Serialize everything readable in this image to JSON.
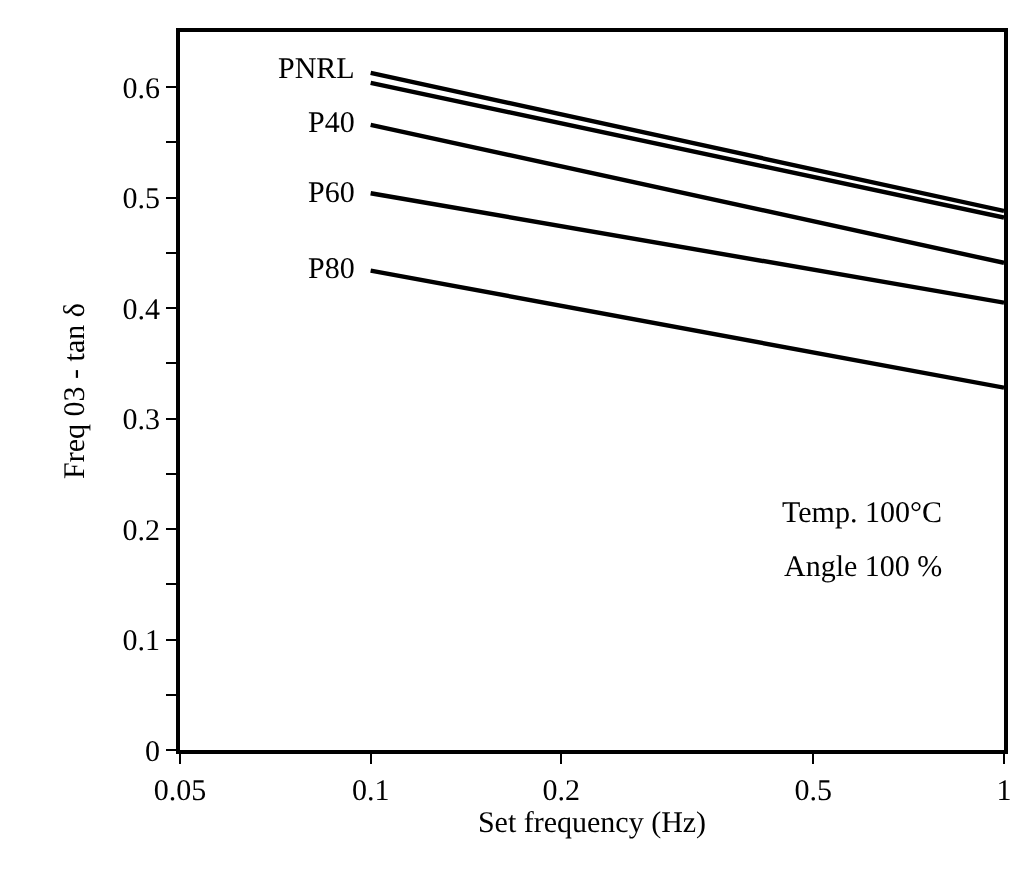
{
  "chart_data": {
    "type": "line",
    "xlabel": "Set frequency (Hz)",
    "ylabel": "Freq 03 - tan δ",
    "log": "x",
    "xlim": [
      0.05,
      1
    ],
    "xticks": [
      0.05,
      0.1,
      0.2,
      0.5,
      1
    ],
    "ylim": [
      0,
      0.65
    ],
    "yticks": [
      0,
      {
        "value": 0.05,
        "label": null
      },
      0.1,
      {
        "value": 0.15,
        "label": null
      },
      0.2,
      {
        "value": 0.25,
        "label": null
      },
      0.3,
      {
        "value": 0.35,
        "label": null
      },
      0.4,
      {
        "value": 0.45,
        "label": null
      },
      0.5,
      {
        "value": 0.55,
        "label": null
      },
      0.6
    ],
    "x": [
      0.1,
      1
    ],
    "series": [
      {
        "color": "#000000",
        "values": [
          0.613,
          0.488
        ]
      },
      {
        "name": "PNRL",
        "color": "#000000",
        "values": [
          0.604,
          0.482
        ]
      },
      {
        "name": "P40",
        "color": "#000000",
        "values": [
          0.566,
          0.441
        ]
      },
      {
        "name": "P60",
        "color": "#000000",
        "values": [
          0.504,
          0.405
        ]
      },
      {
        "name": "P80",
        "color": "#000000",
        "values": [
          0.434,
          0.328
        ]
      }
    ],
    "annotations": [
      "Temp. 100°C",
      "Angle 100 %"
    ],
    "line_style": "solid"
  }
}
